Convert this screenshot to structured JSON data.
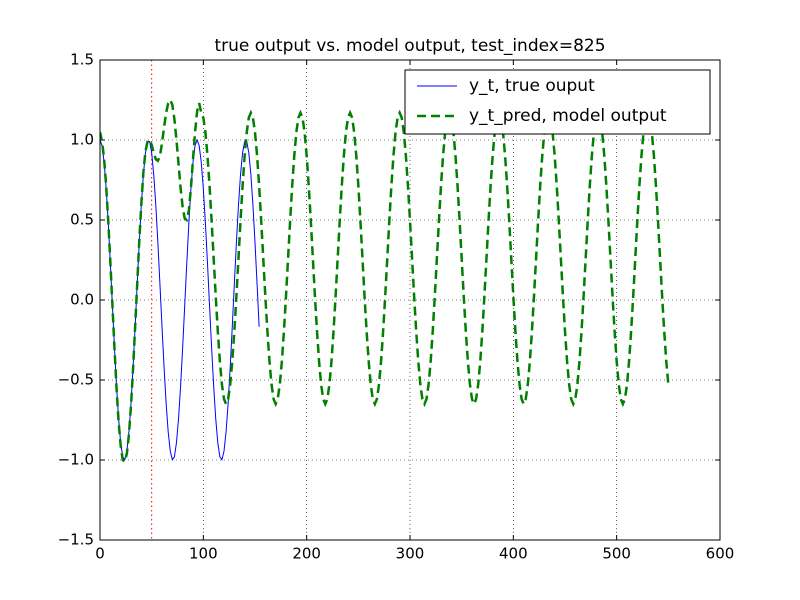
{
  "chart_data": {
    "type": "line",
    "title": "true output vs. model output, test_index=825",
    "xlim": [
      0,
      600
    ],
    "xticks": [
      0,
      100,
      200,
      300,
      400,
      500,
      600
    ],
    "ylim": [
      -1.5,
      1.5
    ],
    "yticks": [
      {
        "value": -1.5,
        "label": "−1.5"
      },
      {
        "value": -1.0,
        "label": "−1.0"
      },
      {
        "value": -0.5,
        "label": "−0.5"
      },
      {
        "value": 0.0,
        "label": "0.0"
      },
      {
        "value": 0.5,
        "label": "0.5"
      },
      {
        "value": 1.0,
        "label": "1.0"
      },
      {
        "value": 1.5,
        "label": "1.5"
      }
    ],
    "grid": true,
    "legend": "upper right",
    "vline": {
      "x": 50,
      "color": "#ff0000",
      "linestyle": "dotted"
    },
    "series": [
      {
        "name": "y_t, true ouput",
        "color": "#0000ff",
        "linestyle": "solid",
        "x": [
          0,
          2,
          4,
          6,
          8,
          10,
          12,
          14,
          16,
          18,
          20,
          22,
          24,
          26,
          28,
          30,
          32,
          34,
          36,
          38,
          40,
          42,
          44,
          46,
          48,
          50,
          52,
          54,
          56,
          58,
          60,
          62,
          64,
          66,
          68,
          70,
          72,
          74,
          76,
          78,
          80,
          82,
          84,
          86,
          88,
          90,
          92,
          94,
          96,
          98,
          100,
          102,
          104,
          106,
          108,
          110,
          112,
          114,
          116,
          118,
          120,
          122,
          124,
          126,
          128,
          130,
          132,
          134,
          136,
          138,
          140,
          142,
          144,
          146,
          148,
          150,
          152,
          154
        ],
        "values": [
          1,
          0.964,
          0.86,
          0.695,
          0.481,
          0.232,
          -0.034,
          -0.296,
          -0.538,
          -0.742,
          -0.893,
          -0.98,
          -0.998,
          -0.945,
          -0.824,
          -0.646,
          -0.421,
          -0.166,
          0.1,
          0.36,
          0.593,
          0.785,
          0.921,
          0.991,
          0.991,
          0.92,
          0.784,
          0.593,
          0.359,
          0.1,
          -0.167,
          -0.421,
          -0.646,
          -0.825,
          -0.945,
          -0.998,
          -0.98,
          -0.892,
          -0.742,
          -0.538,
          -0.296,
          -0.033,
          0.232,
          0.481,
          0.696,
          0.861,
          0.965,
          1.0,
          0.964,
          0.86,
          0.695,
          0.481,
          0.232,
          -0.034,
          -0.296,
          -0.538,
          -0.742,
          -0.893,
          -0.98,
          -0.998,
          -0.945,
          -0.824,
          -0.646,
          -0.421,
          -0.166,
          0.1,
          0.36,
          0.593,
          0.785,
          0.921,
          0.991,
          0.991,
          0.92,
          0.784,
          0.593,
          0.359,
          0.1,
          -0.167
        ]
      },
      {
        "name": "y_t_pred, model output",
        "color": "#008000",
        "linestyle": "dashed",
        "x": [
          0,
          2,
          4,
          6,
          8,
          10,
          12,
          14,
          16,
          18,
          20,
          22,
          24,
          26,
          28,
          30,
          32,
          34,
          36,
          38,
          40,
          42,
          44,
          46,
          48,
          50,
          52,
          54,
          56,
          58,
          60,
          62,
          64,
          66,
          68,
          70,
          72,
          74,
          76,
          78,
          80,
          82,
          84,
          86,
          88,
          90,
          92,
          94,
          96,
          98,
          100,
          102,
          104,
          106,
          108,
          110,
          112,
          114,
          116,
          118,
          120,
          122,
          124,
          126,
          128,
          130,
          132,
          134,
          136,
          138,
          140,
          142,
          144,
          146,
          148,
          150,
          152,
          154,
          156,
          158,
          160,
          162,
          164,
          166,
          168,
          170,
          172,
          174,
          176,
          178,
          180,
          182,
          184,
          186,
          188,
          190,
          192,
          194,
          196,
          198,
          200,
          202,
          204,
          206,
          208,
          210,
          212,
          214,
          216,
          218,
          220,
          222,
          224,
          226,
          228,
          230,
          232,
          234,
          236,
          238,
          240,
          242,
          244,
          246,
          248,
          250,
          252,
          254,
          256,
          258,
          260,
          262,
          264,
          266,
          268,
          270,
          272,
          274,
          276,
          278,
          280,
          282,
          284,
          286,
          288,
          290,
          292,
          294,
          296,
          298,
          300,
          302,
          304,
          306,
          308,
          310,
          312,
          314,
          316,
          318,
          320,
          322,
          324,
          326,
          328,
          330,
          332,
          334,
          336,
          338,
          340,
          342,
          344,
          346,
          348,
          350,
          352,
          354,
          356,
          358,
          360,
          362,
          364,
          366,
          368,
          370,
          372,
          374,
          376,
          378,
          380,
          382,
          384,
          386,
          388,
          390,
          392,
          394,
          396,
          398,
          400,
          402,
          404,
          406,
          408,
          410,
          412,
          414,
          416,
          418,
          420,
          422,
          424,
          426,
          428,
          430,
          432,
          434,
          436,
          438,
          440,
          442,
          444,
          446,
          448,
          450,
          452,
          454,
          456,
          458,
          460,
          462,
          464,
          466,
          468,
          470,
          472,
          474,
          476,
          478,
          480,
          482,
          484,
          486,
          488,
          490,
          492,
          494,
          496,
          498,
          500,
          502,
          504,
          506,
          508,
          510,
          512,
          514,
          516,
          518,
          520,
          522,
          524,
          526,
          528,
          530,
          532,
          534,
          536,
          538,
          540,
          542,
          544,
          546,
          548,
          550
        ],
        "values": [
          1.05,
          0.99,
          0.88,
          0.71,
          0.49,
          0.24,
          -0.03,
          -0.3,
          -0.55,
          -0.76,
          -0.91,
          -1.0,
          -1.01,
          -0.96,
          -0.84,
          -0.66,
          -0.43,
          -0.17,
          0.1,
          0.37,
          0.6,
          0.8,
          0.93,
          0.99,
          1.0,
          0.97,
          0.92,
          0.88,
          0.87,
          0.9,
          0.98,
          1.08,
          1.17,
          1.23,
          1.25,
          1.22,
          1.13,
          1.0,
          0.85,
          0.7,
          0.58,
          0.51,
          0.5,
          0.56,
          0.7,
          0.88,
          1.05,
          1.18,
          1.23,
          1.17,
          1.139,
          1.048,
          0.903,
          0.715,
          0.496,
          0.26,
          0.024,
          -0.195,
          -0.383,
          -0.528,
          -0.619,
          -0.65,
          -0.619,
          -0.528,
          -0.383,
          -0.195,
          0.024,
          0.26,
          0.496,
          0.715,
          0.903,
          1.048,
          1.139,
          1.17,
          1.139,
          1.048,
          0.903,
          0.715,
          0.496,
          0.26,
          0.024,
          -0.195,
          -0.383,
          -0.528,
          -0.619,
          -0.65,
          -0.619,
          -0.528,
          -0.383,
          -0.195,
          0.024,
          0.26,
          0.496,
          0.715,
          0.903,
          1.048,
          1.139,
          1.17,
          1.139,
          1.048,
          0.903,
          0.715,
          0.496,
          0.26,
          0.024,
          -0.195,
          -0.383,
          -0.528,
          -0.619,
          -0.65,
          -0.619,
          -0.528,
          -0.383,
          -0.195,
          0.024,
          0.26,
          0.496,
          0.715,
          0.903,
          1.048,
          1.139,
          1.17,
          1.139,
          1.048,
          0.903,
          0.715,
          0.496,
          0.26,
          0.024,
          -0.195,
          -0.383,
          -0.528,
          -0.619,
          -0.65,
          -0.619,
          -0.528,
          -0.383,
          -0.195,
          0.024,
          0.26,
          0.496,
          0.715,
          0.903,
          1.048,
          1.139,
          1.17,
          1.139,
          1.048,
          0.903,
          0.715,
          0.496,
          0.26,
          0.024,
          -0.195,
          -0.383,
          -0.528,
          -0.619,
          -0.65,
          -0.619,
          -0.528,
          -0.383,
          -0.195,
          0.024,
          0.26,
          0.496,
          0.715,
          0.903,
          1.048,
          1.139,
          1.17,
          1.139,
          1.048,
          0.903,
          0.715,
          0.496,
          0.26,
          0.024,
          -0.195,
          -0.383,
          -0.528,
          -0.619,
          -0.65,
          -0.619,
          -0.528,
          -0.383,
          -0.195,
          0.024,
          0.26,
          0.496,
          0.715,
          0.903,
          1.048,
          1.139,
          1.17,
          1.139,
          1.048,
          0.903,
          0.715,
          0.496,
          0.26,
          0.024,
          -0.195,
          -0.383,
          -0.528,
          -0.619,
          -0.65,
          -0.619,
          -0.528,
          -0.383,
          -0.195,
          0.024,
          0.26,
          0.496,
          0.715,
          0.903,
          1.048,
          1.139,
          1.17,
          1.139,
          1.048,
          0.903,
          0.715,
          0.496,
          0.26,
          0.024,
          -0.195,
          -0.383,
          -0.528,
          -0.619,
          -0.65,
          -0.619,
          -0.528,
          -0.383,
          -0.195,
          0.024,
          0.26,
          0.496,
          0.715,
          0.903,
          1.048,
          1.139,
          1.17,
          1.139,
          1.048,
          0.903,
          0.715,
          0.496,
          0.26,
          0.024,
          -0.195,
          -0.383,
          -0.528,
          -0.619,
          -0.65,
          -0.619,
          -0.528,
          -0.383,
          -0.195,
          0.024,
          0.26,
          0.496,
          0.715,
          0.903,
          1.048,
          1.139,
          1.17,
          1.139,
          1.048,
          0.903,
          0.715,
          0.496,
          0.26,
          0.024,
          -0.195,
          -0.383,
          -0.528
        ]
      }
    ]
  }
}
